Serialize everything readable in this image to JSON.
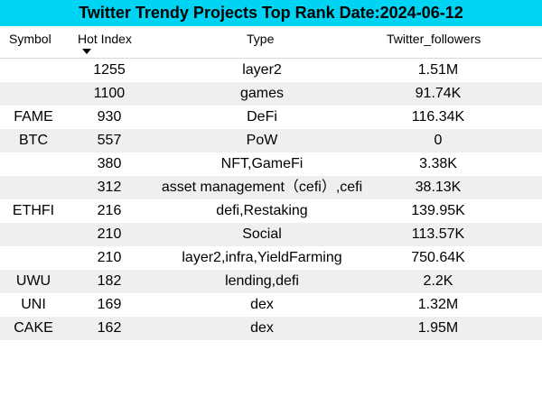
{
  "title": "Twitter Trendy Projects Top Rank Date:2024-06-12",
  "columns": {
    "symbol": "Symbol",
    "hot_index": "Hot Index",
    "type": "Type",
    "twitter_followers": "Twitter_followers"
  },
  "sort": {
    "column": "hot_index",
    "direction": "descending"
  },
  "rows": [
    {
      "symbol": "",
      "hot_index": "1255",
      "type": "layer2",
      "followers": "1.51M"
    },
    {
      "symbol": "",
      "hot_index": "1100",
      "type": "games",
      "followers": "91.74K"
    },
    {
      "symbol": "FAME",
      "hot_index": "930",
      "type": "DeFi",
      "followers": "116.34K"
    },
    {
      "symbol": "BTC",
      "hot_index": "557",
      "type": "PoW",
      "followers": "0"
    },
    {
      "symbol": "",
      "hot_index": "380",
      "type": "NFT,GameFi",
      "followers": "3.38K"
    },
    {
      "symbol": "",
      "hot_index": "312",
      "type": "asset management（cefi）,cefi",
      "followers": "38.13K"
    },
    {
      "symbol": "ETHFI",
      "hot_index": "216",
      "type": "defi,Restaking",
      "followers": "139.95K"
    },
    {
      "symbol": "",
      "hot_index": "210",
      "type": "Social",
      "followers": "113.57K"
    },
    {
      "symbol": "",
      "hot_index": "210",
      "type": "layer2,infra,YieldFarming",
      "followers": "750.64K"
    },
    {
      "symbol": "UWU",
      "hot_index": "182",
      "type": "lending,defi",
      "followers": "2.2K"
    },
    {
      "symbol": "UNI",
      "hot_index": "169",
      "type": "dex",
      "followers": "1.32M"
    },
    {
      "symbol": "CAKE",
      "hot_index": "162",
      "type": "dex",
      "followers": "1.95M"
    }
  ],
  "colors": {
    "title_bg": "#00d4f4",
    "alt_row_bg": "#efefef",
    "text": "#000000"
  }
}
